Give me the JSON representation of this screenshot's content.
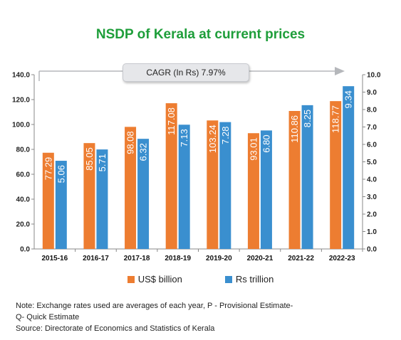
{
  "chart_data": {
    "type": "bar",
    "title": "NSDP of Kerala at current prices",
    "categories": [
      "2015-16",
      "2016-17",
      "2017-18",
      "2018-19",
      "2019-20",
      "2020-21",
      "2021-22",
      "2022-23"
    ],
    "series": [
      {
        "name": "US$ billion",
        "axis": "left",
        "color": "#ed7d31",
        "values": [
          77.29,
          85.05,
          98.08,
          117.08,
          103.24,
          93.01,
          110.86,
          118.77
        ],
        "labels": [
          "77.29",
          "85.05",
          "98.08",
          "117.08",
          "103.24",
          "93.01",
          "110.86",
          "118.77"
        ]
      },
      {
        "name": "Rs trillion",
        "axis": "right",
        "color": "#3a8fcf",
        "values": [
          5.06,
          5.71,
          6.32,
          7.13,
          7.28,
          6.8,
          8.25,
          9.34
        ],
        "labels": [
          "5.06",
          "5.71",
          "6.32",
          "7.13",
          "7.28",
          "6.80",
          "8.25",
          "9.34"
        ]
      }
    ],
    "y_left": {
      "range": [
        0,
        140
      ],
      "ticks": [
        "0.0",
        "20.0",
        "40.0",
        "60.0",
        "80.0",
        "100.0",
        "120.0",
        "140.0"
      ]
    },
    "y_right": {
      "range": [
        0,
        10
      ],
      "ticks": [
        "0.0",
        "1.0",
        "2.0",
        "3.0",
        "4.0",
        "5.0",
        "6.0",
        "7.0",
        "8.0",
        "9.0",
        "10.0"
      ]
    },
    "grid": false,
    "legend_position": "bottom",
    "annotation": "CAGR (In Rs) 7.97%"
  },
  "notes": {
    "line1": "Note: Exchange rates used are averages of each year, P - Provisional Estimate-",
    "line2": "Q- Quick Estimate",
    "line3": "Source: Directorate of Economics and Statistics of Kerala"
  }
}
